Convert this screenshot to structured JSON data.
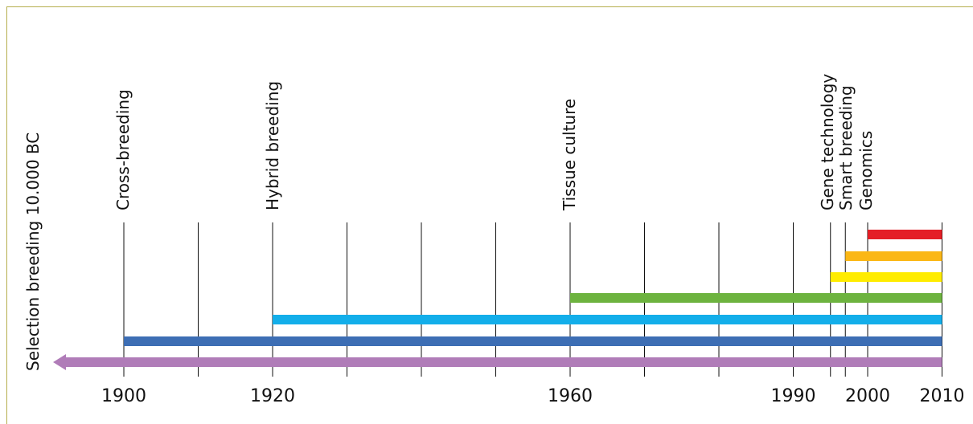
{
  "chart_data": {
    "type": "bar",
    "title": "",
    "xlabel": "",
    "ylabel": "",
    "xlim": [
      1890,
      2010
    ],
    "x_ticks": [
      1900,
      1920,
      1960,
      1990,
      2000,
      2010
    ],
    "x_tick_labels": [
      "1900",
      "1920",
      "1960",
      "1990",
      "2000",
      "2010"
    ],
    "gridlines_x": [
      1900,
      1910,
      1920,
      1930,
      1940,
      1950,
      1960,
      1970,
      1980,
      1990,
      1995,
      1997,
      2000,
      2010
    ],
    "bars": [
      {
        "name": "Selection breeding 10.000 BC",
        "start": "10.000 BC",
        "end": 2010,
        "color": "#b07cb8",
        "arrow_left": true
      },
      {
        "name": "Cross-breeding",
        "start": 1900,
        "end": 2010,
        "color": "#3d6eb4"
      },
      {
        "name": "Hybrid breeding",
        "start": 1920,
        "end": 2010,
        "color": "#13aeea"
      },
      {
        "name": "Tissue culture",
        "start": 1960,
        "end": 2010,
        "color": "#6db33f"
      },
      {
        "name": "Gene technology",
        "start": 1995,
        "end": 2010,
        "color": "#ffec00"
      },
      {
        "name": "Smart breeding",
        "start": 1997,
        "end": 2010,
        "color": "#fbb715"
      },
      {
        "name": "Genomics",
        "start": 2000,
        "end": 2010,
        "color": "#e41e26"
      }
    ],
    "grid": true
  },
  "colors": {
    "frame": "#b5ad4c",
    "grid": "#111111",
    "text": "#111111"
  }
}
